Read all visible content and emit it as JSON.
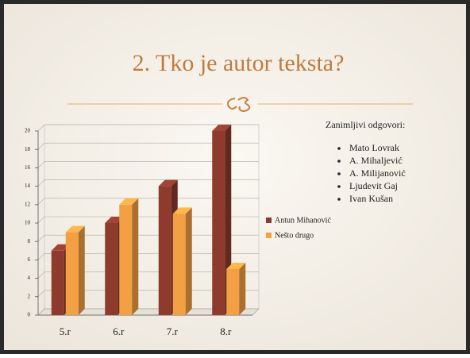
{
  "chart_data": {
    "type": "bar3d",
    "title": "2. Tko je autor teksta?",
    "categories": [
      "5.r",
      "6.r",
      "7.r",
      "8.r"
    ],
    "series": [
      {
        "name": "Antun Mihanović",
        "color": "#8e3a2c",
        "values": [
          7,
          10,
          14,
          20
        ]
      },
      {
        "name": "Nešto drugo",
        "color": "#f2a043",
        "values": [
          9,
          12,
          11,
          5
        ]
      }
    ],
    "ylim": [
      0,
      20
    ],
    "yticks": [
      0,
      2,
      4,
      6,
      8,
      10,
      12,
      14,
      16,
      18,
      20
    ],
    "grid": true,
    "legend": "right"
  },
  "notes": {
    "heading": "Zanimljivi odgovori:",
    "items": [
      "Mato Lovrak",
      "A. Mihaljević",
      "A. Milijanović",
      "Ljudevit Gaj",
      "Ivan Kušan"
    ]
  }
}
